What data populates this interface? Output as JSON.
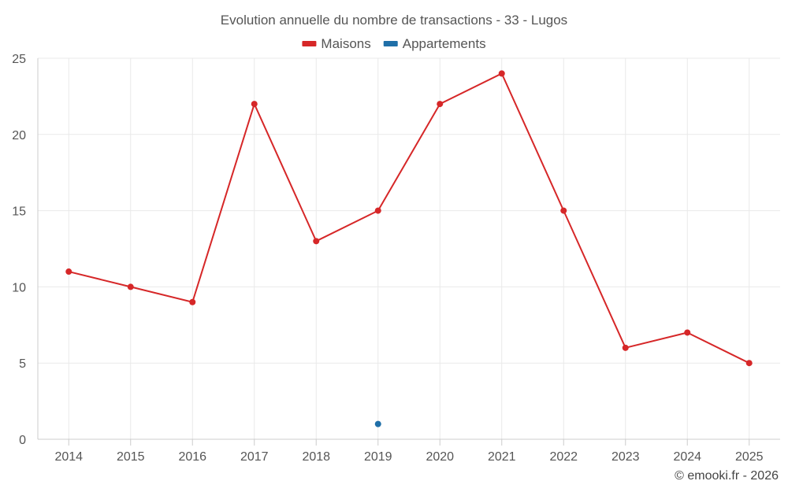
{
  "chart_data": {
    "type": "line",
    "title": "Evolution annuelle du nombre de transactions - 33 - Lugos",
    "categories": [
      "2014",
      "2015",
      "2016",
      "2017",
      "2018",
      "2019",
      "2020",
      "2021",
      "2022",
      "2023",
      "2024",
      "2025"
    ],
    "series": [
      {
        "name": "Maisons",
        "color": "#d62728",
        "values": [
          11,
          10,
          9,
          22,
          13,
          15,
          22,
          24,
          15,
          6,
          7,
          5
        ]
      },
      {
        "name": "Appartements",
        "color": "#1f6fa8",
        "values": [
          null,
          null,
          null,
          null,
          null,
          1,
          null,
          null,
          null,
          null,
          null,
          null
        ]
      }
    ],
    "y_ticks": [
      0,
      5,
      10,
      15,
      20,
      25
    ],
    "ylim": [
      0,
      25
    ],
    "xlabel": "",
    "ylabel": "",
    "grid": true,
    "legend_position": "top-center",
    "credit": "© emooki.fr - 2026"
  }
}
